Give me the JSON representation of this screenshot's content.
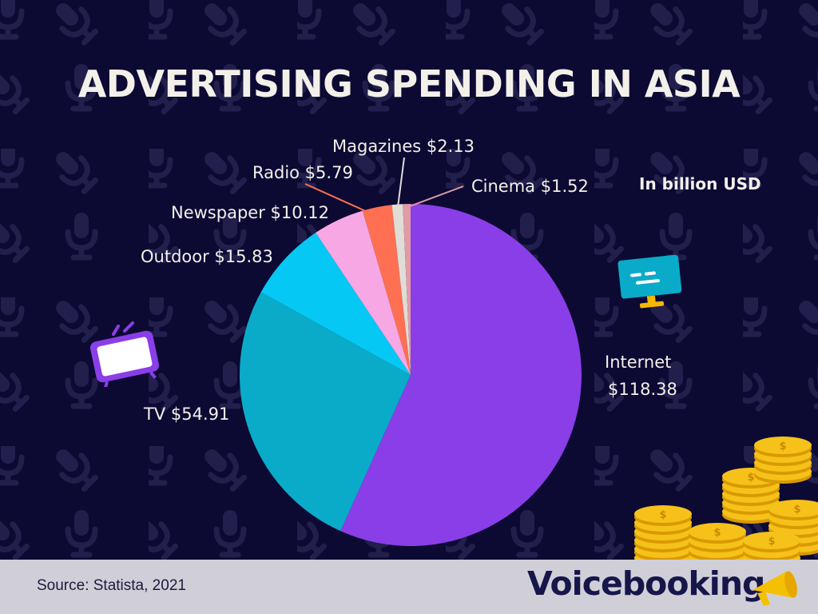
{
  "title": "ADVERTISING SPENDING IN ASIA",
  "unit_note": "In billion USD",
  "source": "Source: Statista, 2021",
  "brand": "Voicebooking",
  "colors": {
    "background": "#0c0a33",
    "footer": "#d0cfd8",
    "text": "#f3f0ea",
    "brand_text": "#16164a"
  },
  "icons": [
    "microphone-pattern-icon",
    "tv-icon",
    "monitor-icon",
    "coin-stack-icon",
    "megaphone-icon"
  ],
  "chart_data": {
    "type": "pie",
    "title": "ADVERTISING SPENDING IN ASIA",
    "unit": "In billion USD",
    "slices": [
      {
        "label": "Internet",
        "value": 118.38,
        "display": "$118.38",
        "color": "#8a3ee8"
      },
      {
        "label": "TV",
        "value": 54.91,
        "display": "$54.91",
        "color": "#0aabc9"
      },
      {
        "label": "Outdoor",
        "value": 15.83,
        "display": "$15.83",
        "color": "#05c8f5"
      },
      {
        "label": "Newspaper",
        "value": 10.12,
        "display": "$10.12",
        "color": "#f7a7e4"
      },
      {
        "label": "Radio",
        "value": 5.79,
        "display": "$5.79",
        "color": "#ff7052"
      },
      {
        "label": "Magazines",
        "value": 2.13,
        "display": "$2.13",
        "color": "#e0ddd6"
      },
      {
        "label": "Cinema",
        "value": 1.52,
        "display": "$1.52",
        "color": "#e09aa8"
      }
    ],
    "legend": "labels-on-slices"
  }
}
